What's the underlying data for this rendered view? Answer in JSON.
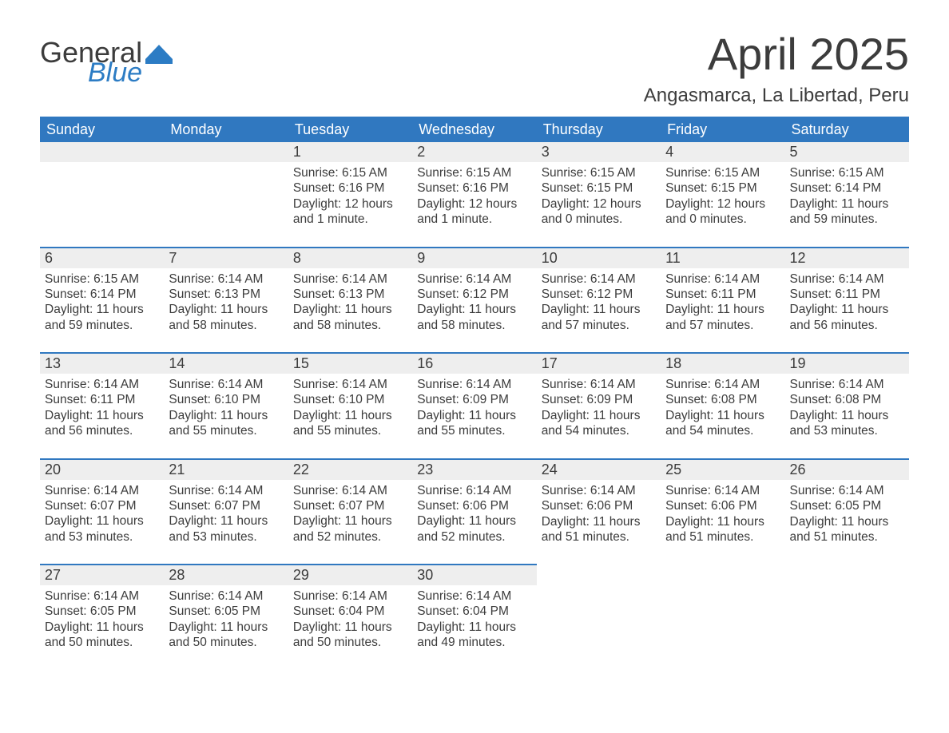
{
  "brand": {
    "general": "General",
    "blue": "Blue"
  },
  "title": {
    "month_year": "April 2025",
    "location": "Angasmarca, La Libertad, Peru"
  },
  "colors": {
    "header_bg": "#3078c0",
    "header_text": "#ffffff",
    "daynum_bg": "#eeeeee",
    "week_divider": "#3078c0",
    "body_text": "#3c3c3c",
    "logo_blue": "#2c7cc4",
    "page_bg": "#ffffff"
  },
  "font": {
    "family": "Segoe UI, Arial, sans-serif",
    "title_size_pt": 42,
    "location_size_pt": 18,
    "day_header_size_pt": 14,
    "cell_size_pt": 12
  },
  "day_headers": [
    "Sunday",
    "Monday",
    "Tuesday",
    "Wednesday",
    "Thursday",
    "Friday",
    "Saturday"
  ],
  "weeks": [
    [
      null,
      null,
      {
        "n": "1",
        "sunrise": "Sunrise: 6:15 AM",
        "sunset": "Sunset: 6:16 PM",
        "d1": "Daylight: 12 hours",
        "d2": "and 1 minute."
      },
      {
        "n": "2",
        "sunrise": "Sunrise: 6:15 AM",
        "sunset": "Sunset: 6:16 PM",
        "d1": "Daylight: 12 hours",
        "d2": "and 1 minute."
      },
      {
        "n": "3",
        "sunrise": "Sunrise: 6:15 AM",
        "sunset": "Sunset: 6:15 PM",
        "d1": "Daylight: 12 hours",
        "d2": "and 0 minutes."
      },
      {
        "n": "4",
        "sunrise": "Sunrise: 6:15 AM",
        "sunset": "Sunset: 6:15 PM",
        "d1": "Daylight: 12 hours",
        "d2": "and 0 minutes."
      },
      {
        "n": "5",
        "sunrise": "Sunrise: 6:15 AM",
        "sunset": "Sunset: 6:14 PM",
        "d1": "Daylight: 11 hours",
        "d2": "and 59 minutes."
      }
    ],
    [
      {
        "n": "6",
        "sunrise": "Sunrise: 6:15 AM",
        "sunset": "Sunset: 6:14 PM",
        "d1": "Daylight: 11 hours",
        "d2": "and 59 minutes."
      },
      {
        "n": "7",
        "sunrise": "Sunrise: 6:14 AM",
        "sunset": "Sunset: 6:13 PM",
        "d1": "Daylight: 11 hours",
        "d2": "and 58 minutes."
      },
      {
        "n": "8",
        "sunrise": "Sunrise: 6:14 AM",
        "sunset": "Sunset: 6:13 PM",
        "d1": "Daylight: 11 hours",
        "d2": "and 58 minutes."
      },
      {
        "n": "9",
        "sunrise": "Sunrise: 6:14 AM",
        "sunset": "Sunset: 6:12 PM",
        "d1": "Daylight: 11 hours",
        "d2": "and 58 minutes."
      },
      {
        "n": "10",
        "sunrise": "Sunrise: 6:14 AM",
        "sunset": "Sunset: 6:12 PM",
        "d1": "Daylight: 11 hours",
        "d2": "and 57 minutes."
      },
      {
        "n": "11",
        "sunrise": "Sunrise: 6:14 AM",
        "sunset": "Sunset: 6:11 PM",
        "d1": "Daylight: 11 hours",
        "d2": "and 57 minutes."
      },
      {
        "n": "12",
        "sunrise": "Sunrise: 6:14 AM",
        "sunset": "Sunset: 6:11 PM",
        "d1": "Daylight: 11 hours",
        "d2": "and 56 minutes."
      }
    ],
    [
      {
        "n": "13",
        "sunrise": "Sunrise: 6:14 AM",
        "sunset": "Sunset: 6:11 PM",
        "d1": "Daylight: 11 hours",
        "d2": "and 56 minutes."
      },
      {
        "n": "14",
        "sunrise": "Sunrise: 6:14 AM",
        "sunset": "Sunset: 6:10 PM",
        "d1": "Daylight: 11 hours",
        "d2": "and 55 minutes."
      },
      {
        "n": "15",
        "sunrise": "Sunrise: 6:14 AM",
        "sunset": "Sunset: 6:10 PM",
        "d1": "Daylight: 11 hours",
        "d2": "and 55 minutes."
      },
      {
        "n": "16",
        "sunrise": "Sunrise: 6:14 AM",
        "sunset": "Sunset: 6:09 PM",
        "d1": "Daylight: 11 hours",
        "d2": "and 55 minutes."
      },
      {
        "n": "17",
        "sunrise": "Sunrise: 6:14 AM",
        "sunset": "Sunset: 6:09 PM",
        "d1": "Daylight: 11 hours",
        "d2": "and 54 minutes."
      },
      {
        "n": "18",
        "sunrise": "Sunrise: 6:14 AM",
        "sunset": "Sunset: 6:08 PM",
        "d1": "Daylight: 11 hours",
        "d2": "and 54 minutes."
      },
      {
        "n": "19",
        "sunrise": "Sunrise: 6:14 AM",
        "sunset": "Sunset: 6:08 PM",
        "d1": "Daylight: 11 hours",
        "d2": "and 53 minutes."
      }
    ],
    [
      {
        "n": "20",
        "sunrise": "Sunrise: 6:14 AM",
        "sunset": "Sunset: 6:07 PM",
        "d1": "Daylight: 11 hours",
        "d2": "and 53 minutes."
      },
      {
        "n": "21",
        "sunrise": "Sunrise: 6:14 AM",
        "sunset": "Sunset: 6:07 PM",
        "d1": "Daylight: 11 hours",
        "d2": "and 53 minutes."
      },
      {
        "n": "22",
        "sunrise": "Sunrise: 6:14 AM",
        "sunset": "Sunset: 6:07 PM",
        "d1": "Daylight: 11 hours",
        "d2": "and 52 minutes."
      },
      {
        "n": "23",
        "sunrise": "Sunrise: 6:14 AM",
        "sunset": "Sunset: 6:06 PM",
        "d1": "Daylight: 11 hours",
        "d2": "and 52 minutes."
      },
      {
        "n": "24",
        "sunrise": "Sunrise: 6:14 AM",
        "sunset": "Sunset: 6:06 PM",
        "d1": "Daylight: 11 hours",
        "d2": "and 51 minutes."
      },
      {
        "n": "25",
        "sunrise": "Sunrise: 6:14 AM",
        "sunset": "Sunset: 6:06 PM",
        "d1": "Daylight: 11 hours",
        "d2": "and 51 minutes."
      },
      {
        "n": "26",
        "sunrise": "Sunrise: 6:14 AM",
        "sunset": "Sunset: 6:05 PM",
        "d1": "Daylight: 11 hours",
        "d2": "and 51 minutes."
      }
    ],
    [
      {
        "n": "27",
        "sunrise": "Sunrise: 6:14 AM",
        "sunset": "Sunset: 6:05 PM",
        "d1": "Daylight: 11 hours",
        "d2": "and 50 minutes."
      },
      {
        "n": "28",
        "sunrise": "Sunrise: 6:14 AM",
        "sunset": "Sunset: 6:05 PM",
        "d1": "Daylight: 11 hours",
        "d2": "and 50 minutes."
      },
      {
        "n": "29",
        "sunrise": "Sunrise: 6:14 AM",
        "sunset": "Sunset: 6:04 PM",
        "d1": "Daylight: 11 hours",
        "d2": "and 50 minutes."
      },
      {
        "n": "30",
        "sunrise": "Sunrise: 6:14 AM",
        "sunset": "Sunset: 6:04 PM",
        "d1": "Daylight: 11 hours",
        "d2": "and 49 minutes."
      },
      null,
      null,
      null
    ]
  ]
}
